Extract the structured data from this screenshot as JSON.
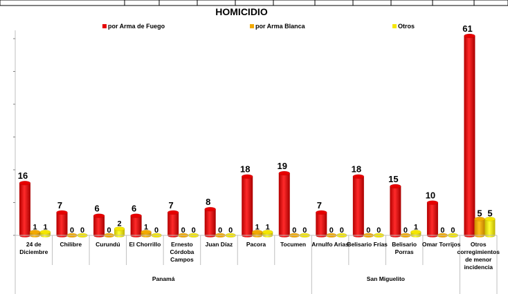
{
  "chart_data": {
    "type": "bar",
    "title": "HOMICIDIO",
    "legend_position": "top",
    "series": [
      {
        "name": "por Arma de Fuego",
        "color": "#e60000",
        "values": [
          16,
          7,
          6,
          6,
          7,
          8,
          18,
          19,
          7,
          18,
          15,
          10,
          61
        ]
      },
      {
        "name": "por Arma Blanca",
        "color": "#f2a900",
        "values": [
          1,
          0,
          0,
          1,
          0,
          0,
          1,
          0,
          0,
          0,
          0,
          0,
          5
        ]
      },
      {
        "name": "Otros",
        "color": "#f5e600",
        "values": [
          1,
          0,
          2,
          0,
          0,
          0,
          1,
          0,
          0,
          0,
          1,
          0,
          5
        ]
      }
    ],
    "categories": [
      {
        "label": [
          "24 de",
          "Diciembre"
        ]
      },
      {
        "label": [
          "Chilibre"
        ]
      },
      {
        "label": [
          "Curundú"
        ]
      },
      {
        "label": [
          "El Chorrillo"
        ]
      },
      {
        "label": [
          "Ernesto",
          "Córdoba",
          "Campos"
        ]
      },
      {
        "label": [
          "Juan Díaz"
        ]
      },
      {
        "label": [
          "Pacora"
        ]
      },
      {
        "label": [
          "Tocumen"
        ]
      },
      {
        "label": [
          "Arnulfo Arias"
        ]
      },
      {
        "label": [
          "Belisario Frías"
        ]
      },
      {
        "label": [
          "Belisario",
          "Porras"
        ]
      },
      {
        "label": [
          "Omar Torrijos"
        ]
      },
      {
        "label": [
          "Otros",
          "corregimientos",
          "",
          "de menor",
          "incidencia"
        ]
      }
    ],
    "groups": [
      {
        "name": "Panamá",
        "start": 0,
        "end": 7
      },
      {
        "name": "San Miguelito",
        "start": 8,
        "end": 11
      },
      {
        "name": "",
        "start": 12,
        "end": 12
      }
    ],
    "ylim": [
      0,
      61
    ],
    "grid": false
  }
}
